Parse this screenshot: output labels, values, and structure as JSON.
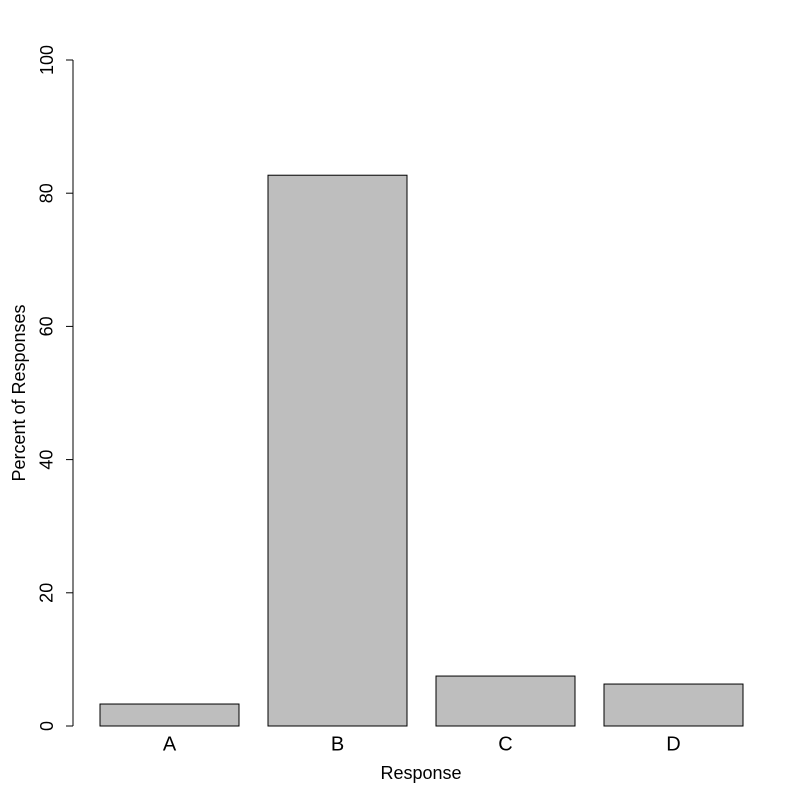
{
  "chart_data": {
    "type": "bar",
    "x_label": "Response",
    "y_label": "Percent of Responses",
    "categories": [
      "A",
      "B",
      "C",
      "D"
    ],
    "values": [
      3.3,
      82.7,
      7.5,
      6.3
    ],
    "color": "#bebebe",
    "ylim": [
      0,
      100
    ],
    "yticks": [
      0,
      20,
      40,
      60,
      80,
      100
    ],
    "grid": false
  }
}
